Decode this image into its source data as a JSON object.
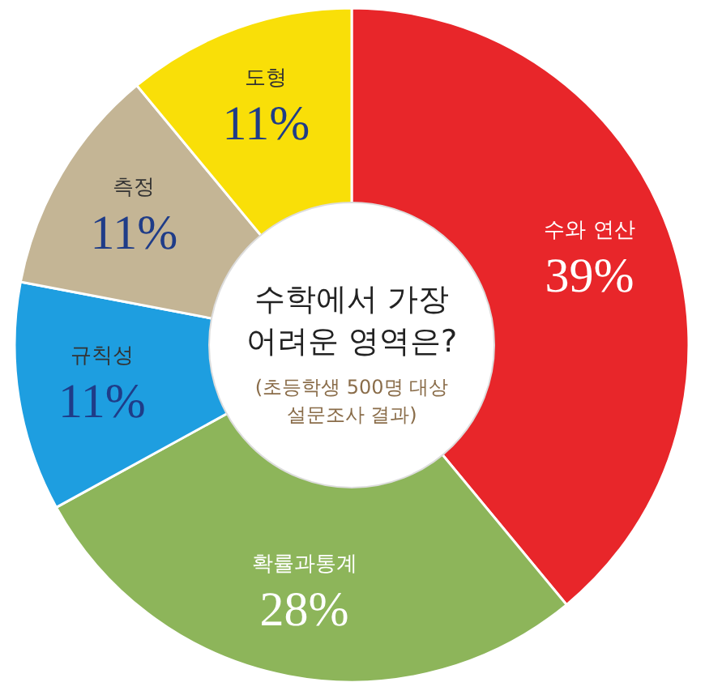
{
  "chart_data": {
    "type": "donut",
    "title": "수학에서 가장 어려운 영역은?",
    "subtitle": "(초등학생 500명 대상 설문조사 결과)",
    "categories": [
      "수와 연산",
      "확률과통계",
      "규칙성",
      "측정",
      "도형"
    ],
    "values": [
      39,
      28,
      11,
      11,
      11
    ],
    "colors": [
      "#e8262a",
      "#8db55a",
      "#1e9ee0",
      "#c4b595",
      "#f9df08"
    ],
    "value_labels": [
      "39%",
      "28%",
      "11%",
      "11%",
      "11%"
    ]
  }
}
